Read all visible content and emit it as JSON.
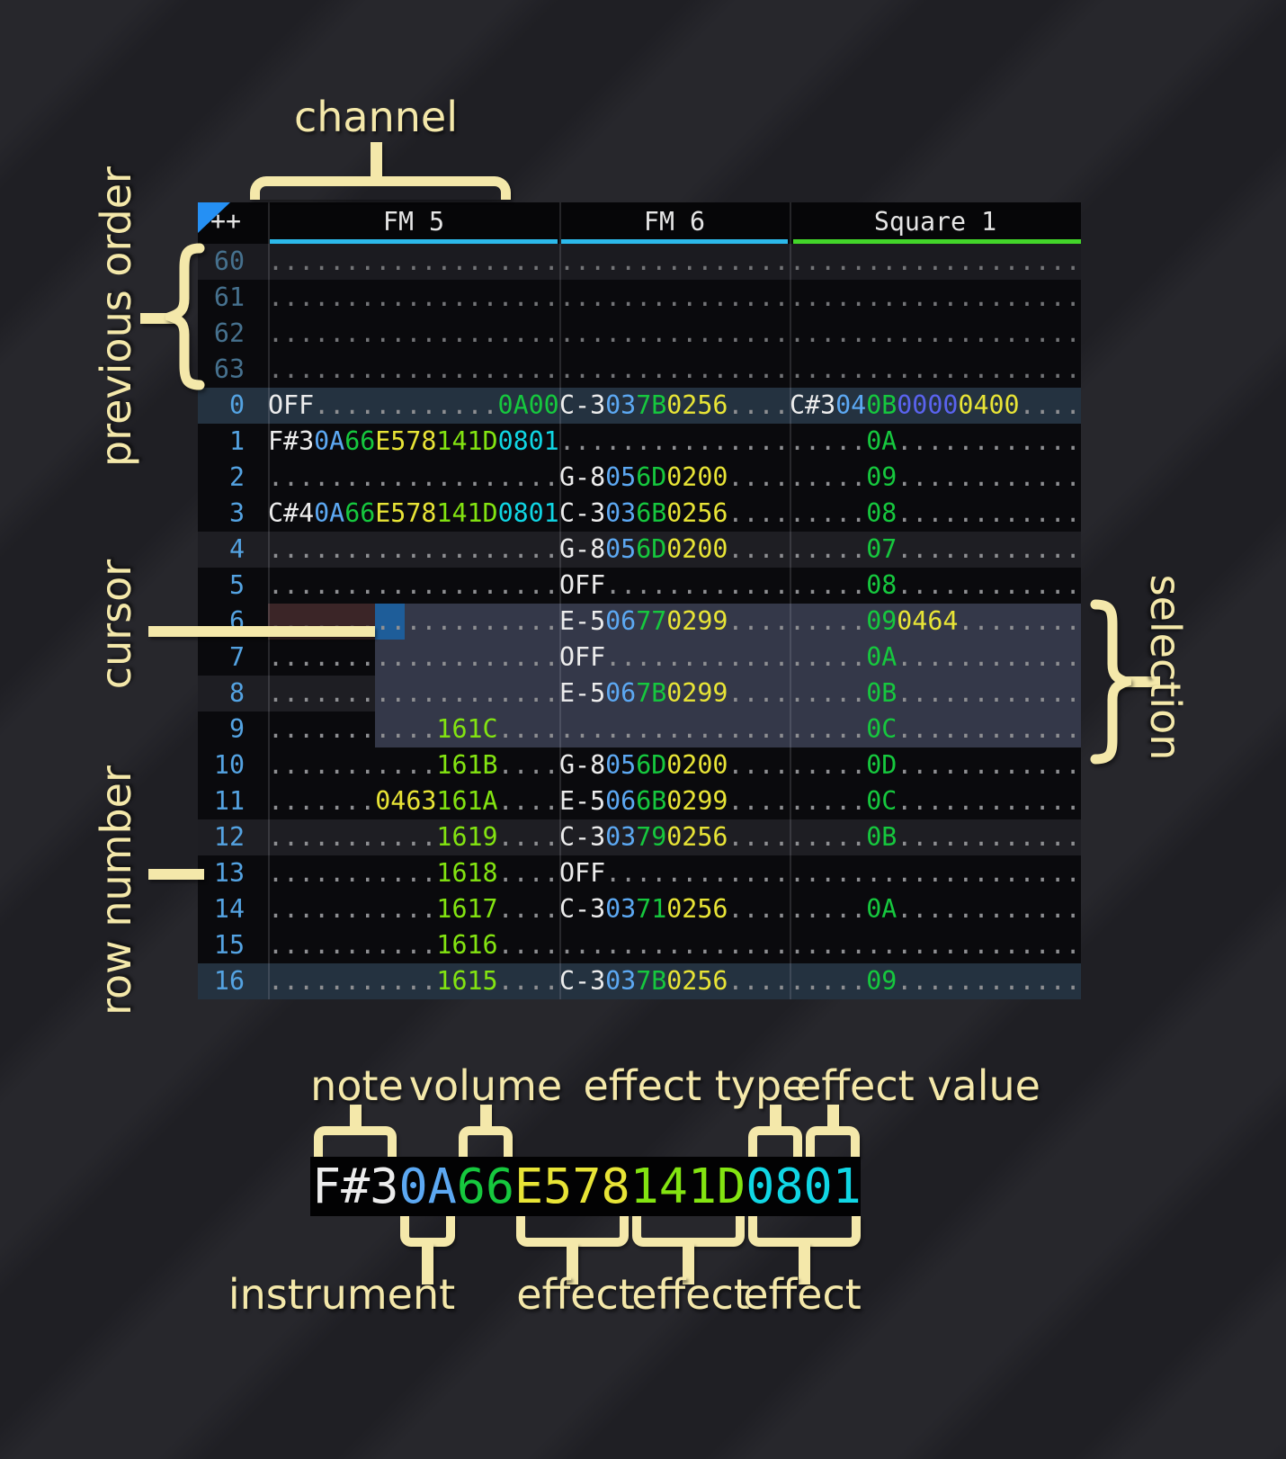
{
  "annotations": {
    "channel": "channel",
    "previous_order": "previous order",
    "cursor": "cursor",
    "row_number": "row number",
    "selection": "selection"
  },
  "colors": {
    "accent_fm": "#2cb9ea",
    "accent_square": "#43d52a",
    "cursor_block": "#1e5d99",
    "cursor_row": "#3b2527",
    "selection": "#343849",
    "order_row_highlight": "#243240",
    "annotation_cream": "#f4e8aa",
    "note_text": "#ececec",
    "instrument_text": "#5ca8f2",
    "volume_text": "#16c83e",
    "effect_yellow": "#e8e436",
    "effect_lime": "#83e411",
    "effect_cyan": "#10d6e4",
    "effect_indigo": "#5a63ee",
    "row_number_text": "#54a3e2",
    "previous_row_number_text": "#46718e"
  },
  "pattern": {
    "corner_label": "++",
    "channels": [
      {
        "name": "FM 5",
        "accent": "#2cb9ea"
      },
      {
        "name": "FM 6",
        "accent": "#2cb9ea"
      },
      {
        "name": "Square 1",
        "accent": "#43d52a"
      }
    ],
    "rows": [
      {
        "num": "60",
        "kind": "prevhl",
        "cells": [
          [
            [
              "...................",
              "d"
            ]
          ],
          [
            [
              "...............",
              "d"
            ]
          ],
          [
            [
              "...................",
              "d"
            ]
          ]
        ]
      },
      {
        "num": "61",
        "kind": "prev",
        "cells": [
          [
            [
              "...................",
              "d"
            ]
          ],
          [
            [
              "...............",
              "d"
            ]
          ],
          [
            [
              "...................",
              "d"
            ]
          ]
        ]
      },
      {
        "num": "62",
        "kind": "prev",
        "cells": [
          [
            [
              "...................",
              "d"
            ]
          ],
          [
            [
              "...............",
              "d"
            ]
          ],
          [
            [
              "...................",
              "d"
            ]
          ]
        ]
      },
      {
        "num": "63",
        "kind": "prev",
        "cells": [
          [
            [
              "...................",
              "d"
            ]
          ],
          [
            [
              "...............",
              "d"
            ]
          ],
          [
            [
              "...................",
              "d"
            ]
          ]
        ]
      },
      {
        "num": "0",
        "kind": "order",
        "cells": [
          [
            [
              "OFF",
              "n"
            ],
            [
              "............",
              "d"
            ],
            [
              "0A00",
              "v"
            ]
          ],
          [
            [
              "C-3",
              "n"
            ],
            [
              "03",
              "i"
            ],
            [
              "7B",
              "v"
            ],
            [
              "0256",
              "y"
            ],
            [
              "....",
              "d"
            ]
          ],
          [
            [
              "C#3",
              "n"
            ],
            [
              "04",
              "i"
            ],
            [
              "0B",
              "v"
            ],
            [
              "0000",
              "p"
            ],
            [
              "0400",
              "y"
            ],
            [
              "....",
              "d"
            ]
          ]
        ]
      },
      {
        "num": "1",
        "kind": "base",
        "cells": [
          [
            [
              "F#3",
              "n"
            ],
            [
              "0A",
              "i"
            ],
            [
              "66",
              "v"
            ],
            [
              "E578",
              "y"
            ],
            [
              "141D",
              "l"
            ],
            [
              "0801",
              "c"
            ]
          ],
          [
            [
              "...............",
              "d"
            ]
          ],
          [
            [
              ".....",
              "d"
            ],
            [
              "0A",
              "v"
            ],
            [
              "............",
              "d"
            ]
          ]
        ]
      },
      {
        "num": "2",
        "kind": "base",
        "cells": [
          [
            [
              "...................",
              "d"
            ]
          ],
          [
            [
              "G-8",
              "n"
            ],
            [
              "05",
              "i"
            ],
            [
              "6D",
              "v"
            ],
            [
              "0200",
              "y"
            ],
            [
              "....",
              "d"
            ]
          ],
          [
            [
              ".....",
              "d"
            ],
            [
              "09",
              "v"
            ],
            [
              "............",
              "d"
            ]
          ]
        ]
      },
      {
        "num": "3",
        "kind": "base",
        "cells": [
          [
            [
              "C#4",
              "n"
            ],
            [
              "0A",
              "i"
            ],
            [
              "66",
              "v"
            ],
            [
              "E578",
              "y"
            ],
            [
              "141D",
              "l"
            ],
            [
              "0801",
              "c"
            ]
          ],
          [
            [
              "C-3",
              "n"
            ],
            [
              "03",
              "i"
            ],
            [
              "6B",
              "v"
            ],
            [
              "0256",
              "y"
            ],
            [
              "....",
              "d"
            ]
          ],
          [
            [
              ".....",
              "d"
            ],
            [
              "08",
              "v"
            ],
            [
              "............",
              "d"
            ]
          ]
        ]
      },
      {
        "num": "4",
        "kind": "hl",
        "cells": [
          [
            [
              "...................",
              "d"
            ]
          ],
          [
            [
              "G-8",
              "n"
            ],
            [
              "05",
              "i"
            ],
            [
              "6D",
              "v"
            ],
            [
              "0200",
              "y"
            ],
            [
              "....",
              "d"
            ]
          ],
          [
            [
              ".....",
              "d"
            ],
            [
              "07",
              "v"
            ],
            [
              "............",
              "d"
            ]
          ]
        ]
      },
      {
        "num": "5",
        "kind": "base",
        "cells": [
          [
            [
              "...................",
              "d"
            ]
          ],
          [
            [
              "OFF",
              "n"
            ],
            [
              "............",
              "d"
            ]
          ],
          [
            [
              ".....",
              "d"
            ],
            [
              "08",
              "v"
            ],
            [
              "............",
              "d"
            ]
          ]
        ]
      },
      {
        "num": "6",
        "kind": "cursor",
        "cells": [
          [
            [
              "...................",
              "d"
            ]
          ],
          [
            [
              "E-5",
              "n"
            ],
            [
              "06",
              "i"
            ],
            [
              "77",
              "v"
            ],
            [
              "0299",
              "y"
            ],
            [
              "....",
              "d"
            ]
          ],
          [
            [
              ".....",
              "d"
            ],
            [
              "09",
              "v"
            ],
            [
              "0464",
              "y"
            ],
            [
              "........",
              "d"
            ]
          ]
        ]
      },
      {
        "num": "7",
        "kind": "base",
        "cells": [
          [
            [
              "...................",
              "d"
            ]
          ],
          [
            [
              "OFF",
              "n"
            ],
            [
              "............",
              "d"
            ]
          ],
          [
            [
              ".....",
              "d"
            ],
            [
              "0A",
              "v"
            ],
            [
              "............",
              "d"
            ]
          ]
        ]
      },
      {
        "num": "8",
        "kind": "hl",
        "cells": [
          [
            [
              "...................",
              "d"
            ]
          ],
          [
            [
              "E-5",
              "n"
            ],
            [
              "06",
              "i"
            ],
            [
              "7B",
              "v"
            ],
            [
              "0299",
              "y"
            ],
            [
              "....",
              "d"
            ]
          ],
          [
            [
              ".....",
              "d"
            ],
            [
              "0B",
              "v"
            ],
            [
              "............",
              "d"
            ]
          ]
        ]
      },
      {
        "num": "9",
        "kind": "base",
        "cells": [
          [
            [
              "...........",
              "d"
            ],
            [
              "161C",
              "l"
            ],
            [
              "....",
              "d"
            ]
          ],
          [
            [
              "...............",
              "d"
            ]
          ],
          [
            [
              ".....",
              "d"
            ],
            [
              "0C",
              "v"
            ],
            [
              "............",
              "d"
            ]
          ]
        ]
      },
      {
        "num": "10",
        "kind": "base",
        "cells": [
          [
            [
              "...........",
              "d"
            ],
            [
              "161B",
              "l"
            ],
            [
              "....",
              "d"
            ]
          ],
          [
            [
              "G-8",
              "n"
            ],
            [
              "05",
              "i"
            ],
            [
              "6D",
              "v"
            ],
            [
              "0200",
              "y"
            ],
            [
              "....",
              "d"
            ]
          ],
          [
            [
              ".....",
              "d"
            ],
            [
              "0D",
              "v"
            ],
            [
              "............",
              "d"
            ]
          ]
        ]
      },
      {
        "num": "11",
        "kind": "base",
        "cells": [
          [
            [
              ".......",
              "d"
            ],
            [
              "0463",
              "y"
            ],
            [
              "161A",
              "l"
            ],
            [
              "....",
              "d"
            ]
          ],
          [
            [
              "E-5",
              "n"
            ],
            [
              "06",
              "i"
            ],
            [
              "6B",
              "v"
            ],
            [
              "0299",
              "y"
            ],
            [
              "....",
              "d"
            ]
          ],
          [
            [
              ".....",
              "d"
            ],
            [
              "0C",
              "v"
            ],
            [
              "............",
              "d"
            ]
          ]
        ]
      },
      {
        "num": "12",
        "kind": "hl",
        "cells": [
          [
            [
              "...........",
              "d"
            ],
            [
              "1619",
              "l"
            ],
            [
              "....",
              "d"
            ]
          ],
          [
            [
              "C-3",
              "n"
            ],
            [
              "03",
              "i"
            ],
            [
              "79",
              "v"
            ],
            [
              "0256",
              "y"
            ],
            [
              "....",
              "d"
            ]
          ],
          [
            [
              ".....",
              "d"
            ],
            [
              "0B",
              "v"
            ],
            [
              "............",
              "d"
            ]
          ]
        ]
      },
      {
        "num": "13",
        "kind": "base",
        "cells": [
          [
            [
              "...........",
              "d"
            ],
            [
              "1618",
              "l"
            ],
            [
              "....",
              "d"
            ]
          ],
          [
            [
              "OFF",
              "n"
            ],
            [
              "............",
              "d"
            ]
          ],
          [
            [
              "...................",
              "d"
            ]
          ]
        ]
      },
      {
        "num": "14",
        "kind": "base",
        "cells": [
          [
            [
              "...........",
              "d"
            ],
            [
              "1617",
              "l"
            ],
            [
              "....",
              "d"
            ]
          ],
          [
            [
              "C-3",
              "n"
            ],
            [
              "03",
              "i"
            ],
            [
              "71",
              "v"
            ],
            [
              "0256",
              "y"
            ],
            [
              "....",
              "d"
            ]
          ],
          [
            [
              ".....",
              "d"
            ],
            [
              "0A",
              "v"
            ],
            [
              "............",
              "d"
            ]
          ]
        ]
      },
      {
        "num": "15",
        "kind": "base",
        "cells": [
          [
            [
              "...........",
              "d"
            ],
            [
              "1616",
              "l"
            ],
            [
              "....",
              "d"
            ]
          ],
          [
            [
              "...............",
              "d"
            ]
          ],
          [
            [
              "...................",
              "d"
            ]
          ]
        ]
      },
      {
        "num": "16",
        "kind": "order",
        "cells": [
          [
            [
              "...........",
              "d"
            ],
            [
              "1615",
              "l"
            ],
            [
              "....",
              "d"
            ]
          ],
          [
            [
              "C-3",
              "n"
            ],
            [
              "03",
              "i"
            ],
            [
              "7B",
              "v"
            ],
            [
              "0256",
              "y"
            ],
            [
              "....",
              "d"
            ]
          ],
          [
            [
              ".....",
              "d"
            ],
            [
              "09",
              "v"
            ],
            [
              "............",
              "d"
            ]
          ]
        ]
      }
    ]
  },
  "legend": {
    "segments": [
      [
        "F#3",
        "n"
      ],
      [
        "0A",
        "i"
      ],
      [
        "66",
        "v"
      ],
      [
        "E578",
        "y"
      ],
      [
        "141D",
        "l"
      ],
      [
        "0801",
        "c"
      ]
    ],
    "top_labels": [
      "note",
      "volume",
      "effect type",
      "effect value"
    ],
    "bottom_labels": [
      "instrument",
      "effect",
      "effect",
      "effect"
    ]
  }
}
